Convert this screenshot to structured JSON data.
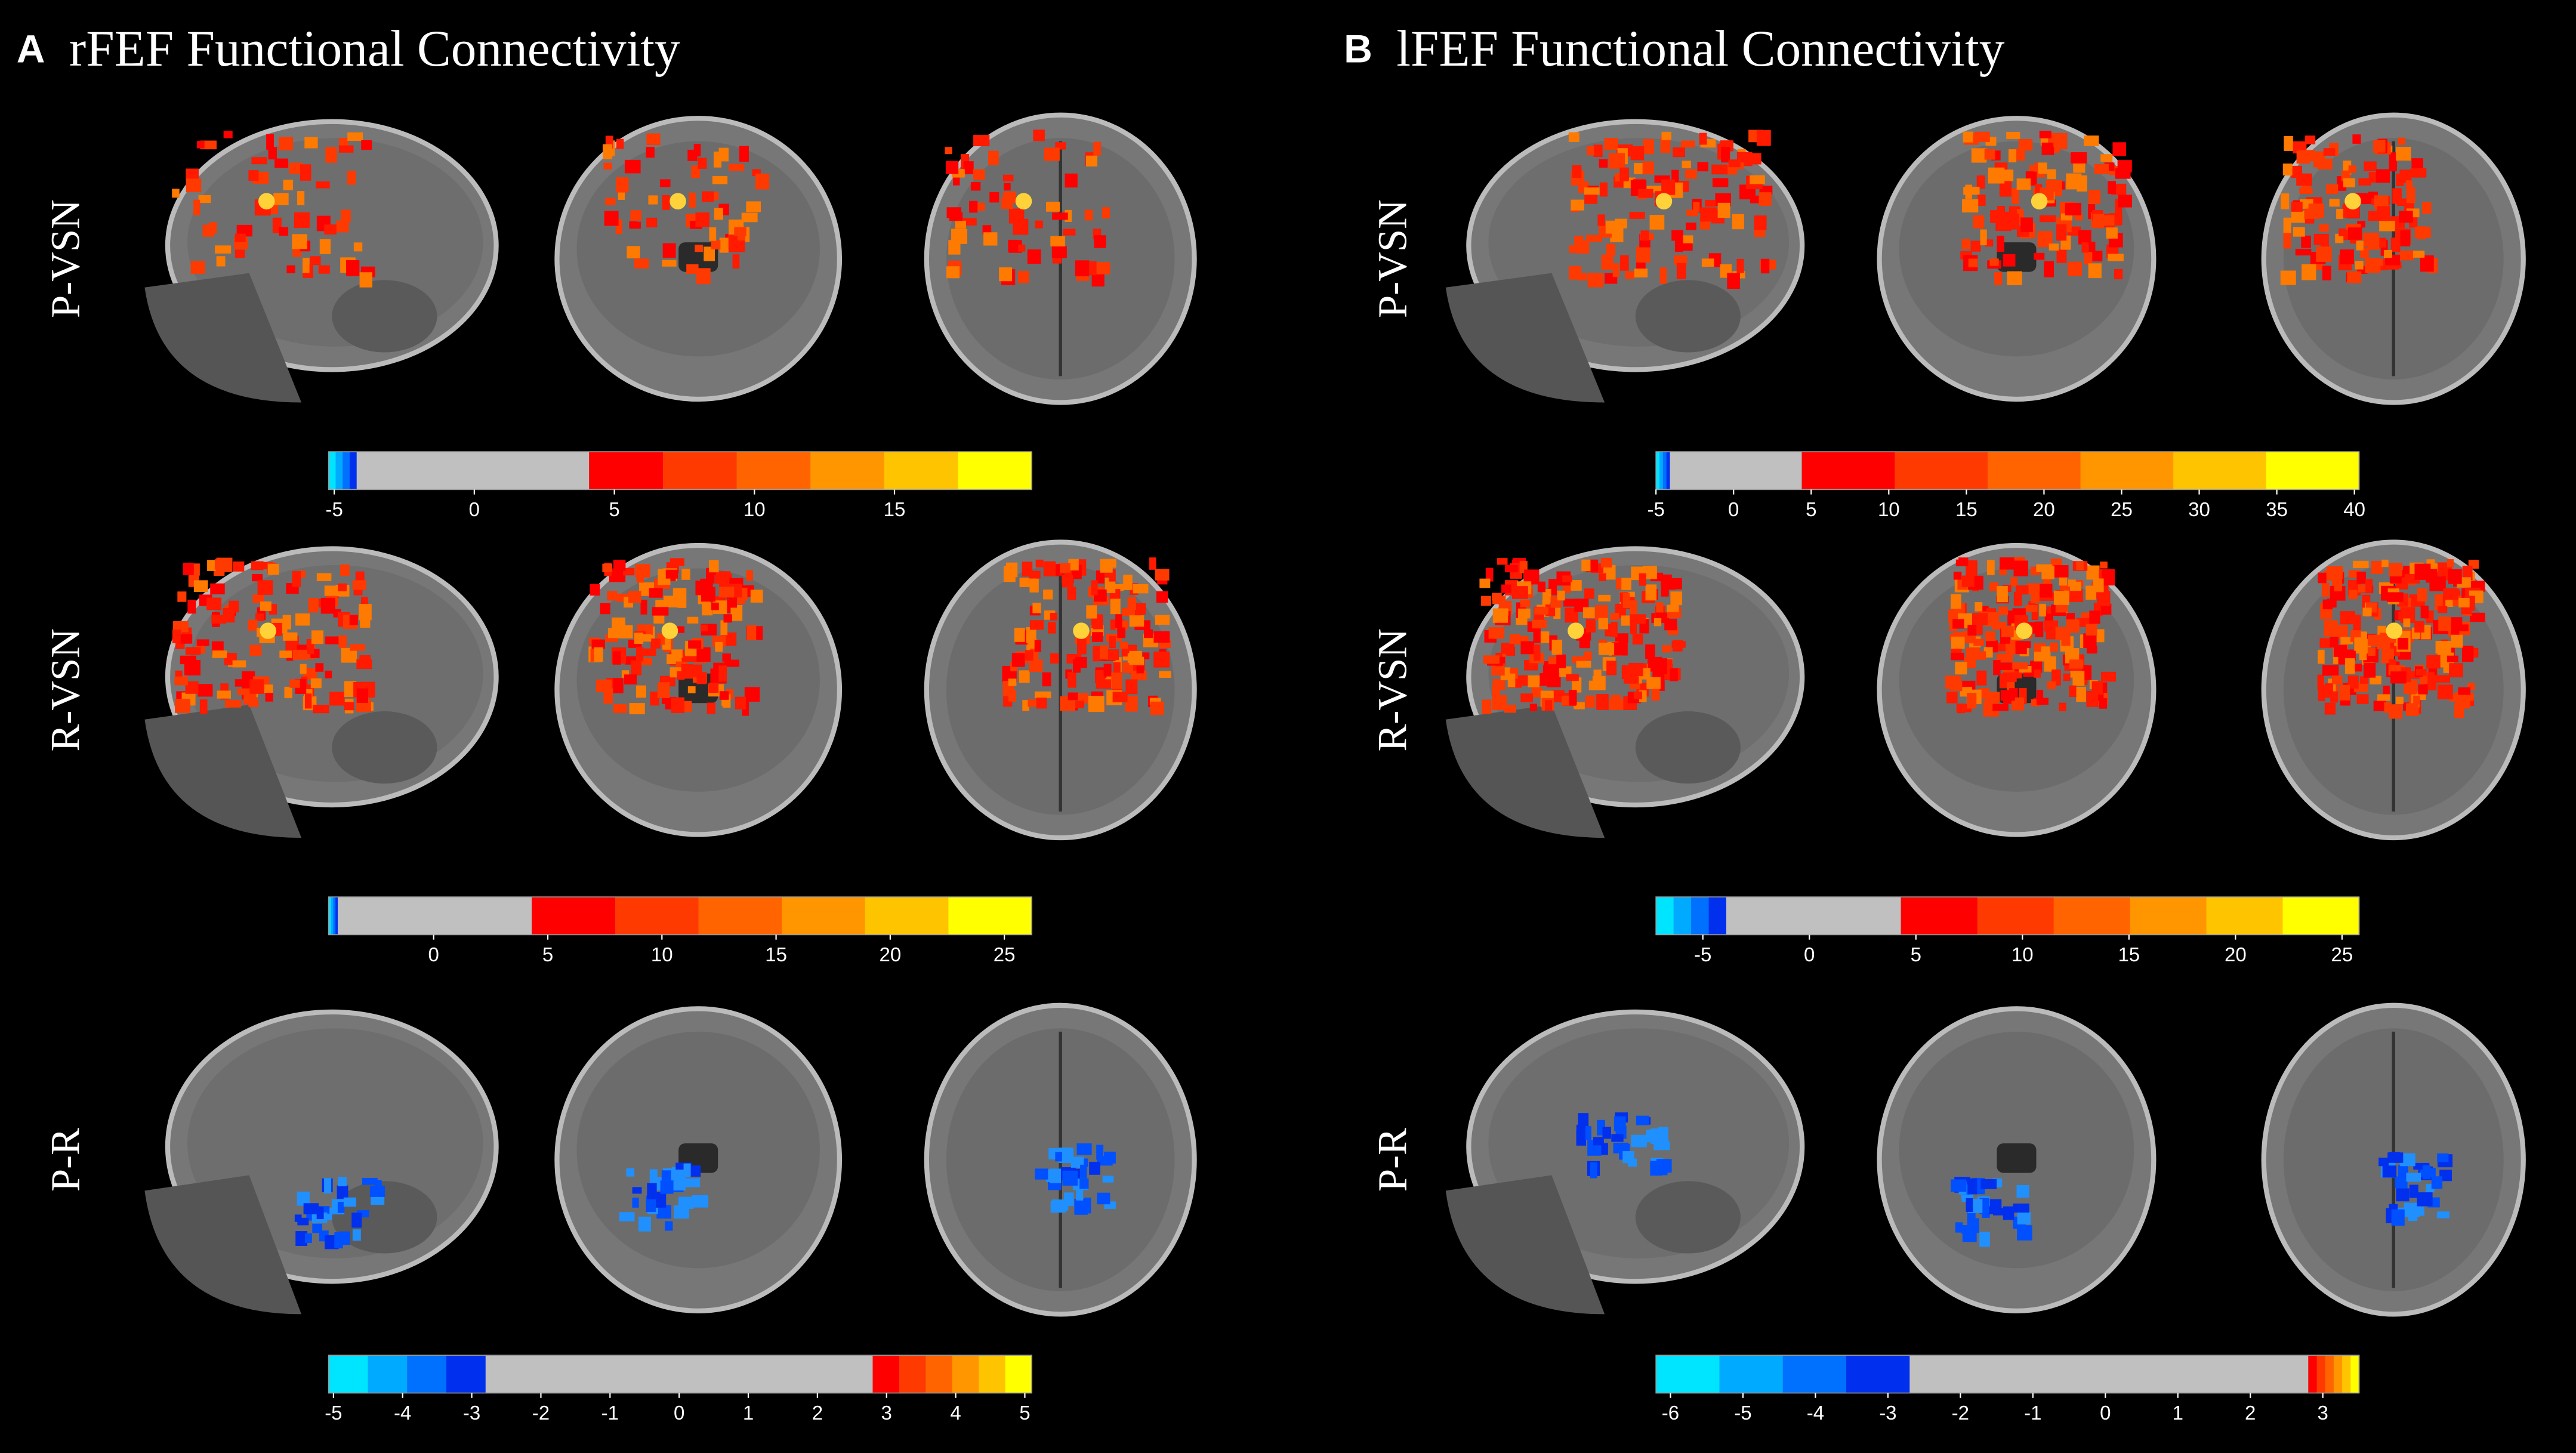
{
  "colormap": {
    "negative": [
      "#00e5ff",
      "#00aaff",
      "#0070ff",
      "#0030ee"
    ],
    "positive": [
      "#ff0000",
      "#ff3a00",
      "#ff6400",
      "#ff9600",
      "#ffc400",
      "#ffff00"
    ],
    "neutral": "#c0c0c0"
  },
  "panels": [
    {
      "letter": "A",
      "title": "rFEF Functional Connectivity",
      "rows": [
        {
          "label": "P-VSN",
          "colorbar": {
            "lim": [
              -5.2,
              19.9
            ],
            "threshold": [
              -4.2,
              4.1
            ],
            "ticks": [
              -5,
              0,
              5,
              10,
              15
            ]
          }
        },
        {
          "label": "R-VSN",
          "colorbar": {
            "lim": [
              -4.6,
              26.2
            ],
            "threshold": [
              -4.2,
              4.3
            ],
            "ticks": [
              0,
              5,
              10,
              15,
              20,
              25
            ]
          }
        },
        {
          "label": "P-R",
          "colorbar": {
            "lim": [
              -5.07,
              5.1
            ],
            "threshold": [
              -2.8,
              2.8
            ],
            "ticks": [
              -5,
              -4,
              -3,
              -2,
              -1,
              0,
              1,
              2,
              3,
              4,
              5
            ]
          }
        }
      ]
    },
    {
      "letter": "B",
      "title": "lFEF Functional Connectivity",
      "rows": [
        {
          "label": "P-VSN",
          "colorbar": {
            "lim": [
              -5.0,
              40.3
            ],
            "threshold": [
              -4.1,
              4.4
            ],
            "ticks": [
              -5,
              0,
              5,
              10,
              15,
              20,
              25,
              30,
              35,
              40
            ]
          }
        },
        {
          "label": "R-VSN",
          "colorbar": {
            "lim": [
              -7.2,
              25.8
            ],
            "threshold": [
              -3.9,
              4.3
            ],
            "ticks": [
              -5,
              0,
              5,
              10,
              15,
              20,
              25
            ]
          }
        },
        {
          "label": "P-R",
          "colorbar": {
            "lim": [
              -6.2,
              3.5
            ],
            "threshold": [
              -2.7,
              2.8
            ],
            "ticks": [
              -6,
              -5,
              -4,
              -3,
              -2,
              -1,
              0,
              1,
              2,
              3
            ]
          }
        }
      ]
    }
  ]
}
